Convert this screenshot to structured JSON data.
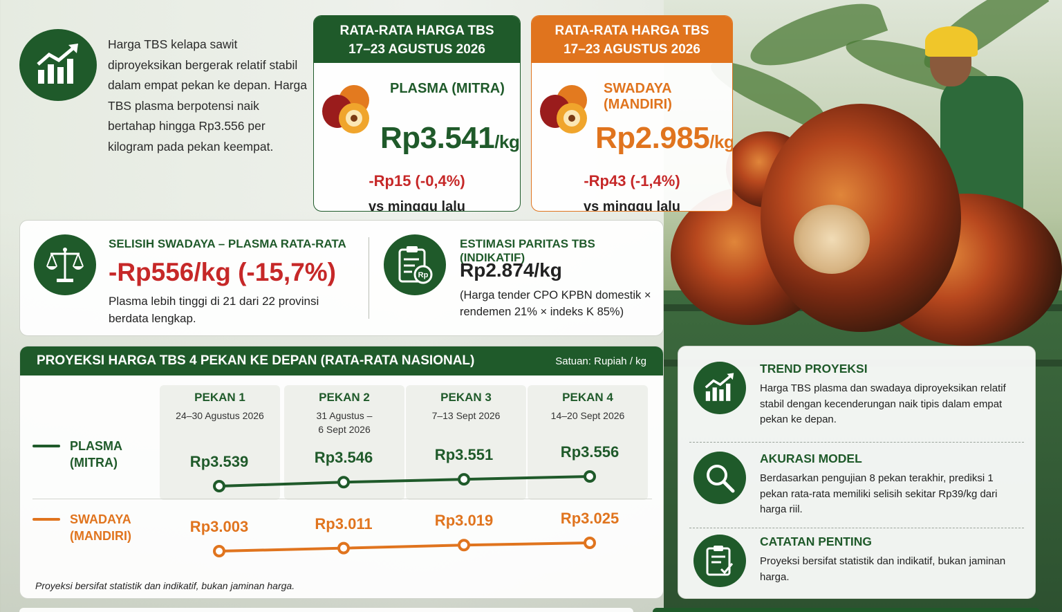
{
  "intro": {
    "text": "Harga TBS kelapa sawit diproyeksikan bergerak relatif stabil dalam empat pekan ke depan. Harga TBS plasma berpotensi naik bertahap hingga Rp3.556 per kilogram pada pekan keempat.",
    "icon": "chart-up-icon"
  },
  "plasma_card": {
    "head_line1": "RATA-RATA HARGA TBS",
    "head_line2": "17–23 AGUSTUS 2026",
    "label": "PLASMA (MITRA)",
    "price": "Rp3.541",
    "unit": "/kg",
    "change": "-Rp15 (-0,4%)",
    "vs": "vs minggu lalu",
    "color": "#1f5a2a"
  },
  "swadaya_card": {
    "head_line1": "RATA-RATA HARGA TBS",
    "head_line2": "17–23 AGUSTUS 2026",
    "label": "SWADAYA (MANDIRI)",
    "price": "Rp2.985",
    "unit": "/kg",
    "change": "-Rp43 (-1,4%)",
    "vs": "vs minggu lalu",
    "color": "#e0741e"
  },
  "gap": {
    "title": "SELISIH SWADAYA – PLASMA RATA-RATA",
    "value": "-Rp556/kg (-15,7%)",
    "note": "Plasma lebih tinggi di 21 dari 22 provinsi berdata lengkap.",
    "icon": "scale-icon"
  },
  "parity": {
    "title": "ESTIMASI PARITAS TBS (INDIKATIF)",
    "value": "Rp2.874/kg",
    "note": "(Harga tender CPO KPBN domestik × rendemen 21% × indeks K 85%)",
    "icon": "clipboard-rp-icon"
  },
  "projection": {
    "title": "PROYEKSI HARGA TBS 4 PEKAN KE DEPAN (RATA-RATA NASIONAL)",
    "unit": "Satuan: Rupiah / kg",
    "weeks": [
      {
        "name": "PEKAN 1",
        "dates": "24–30 Agustus 2026"
      },
      {
        "name": "PEKAN 2",
        "dates": "31 Agustus –\n6 Sept 2026"
      },
      {
        "name": "PEKAN 3",
        "dates": "7–13 Sept 2026"
      },
      {
        "name": "PEKAN 4",
        "dates": "14–20 Sept 2026"
      }
    ],
    "series": [
      {
        "name_line1": "PLASMA",
        "name_line2": "(MITRA)",
        "color": "#1f5a2a",
        "labels": [
          "Rp3.539",
          "Rp3.546",
          "Rp3.551",
          "Rp3.556"
        ],
        "values": [
          3539,
          3546,
          3551,
          3556
        ]
      },
      {
        "name_line1": "SWADAYA",
        "name_line2": "(MANDIRI)",
        "color": "#e0741e",
        "labels": [
          "Rp3.003",
          "Rp3.011",
          "Rp3.019",
          "Rp3.025"
        ],
        "values": [
          3003,
          3011,
          3019,
          3025
        ]
      }
    ],
    "note": "Proyeksi bersifat statistik dan indikatif, bukan jaminan harga."
  },
  "info": [
    {
      "title": "TREND PROYEKSI",
      "text": "Harga TBS plasma dan swadaya diproyeksikan relatif stabil dengan kecenderungan naik tipis dalam empat pekan ke depan.",
      "icon": "chart-up-icon"
    },
    {
      "title": "AKURASI MODEL",
      "text": "Berdasarkan pengujian 8 pekan terakhir, prediksi 1 pekan rata-rata memiliki selisih sekitar Rp39/kg dari harga riil.",
      "icon": "magnifier-icon"
    },
    {
      "title": "CATATAN PENTING",
      "text": "Proyeksi bersifat statistik dan indikatif, bukan jaminan harga.",
      "icon": "clipboard-check-icon"
    }
  ]
}
